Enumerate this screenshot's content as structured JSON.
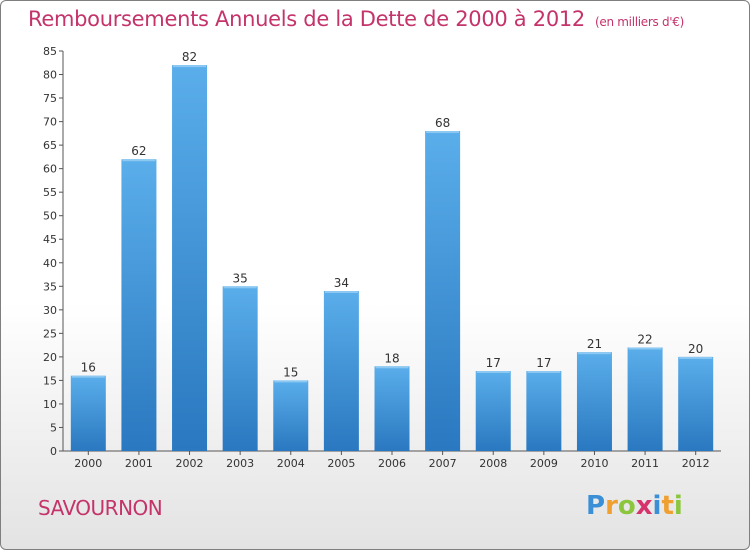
{
  "title": "Remboursements Annuels de la Dette de 2000 à 2012",
  "subtitle": "(en milliers d'€)",
  "commune": "SAVOURNON",
  "logo": {
    "text": "Proxiti",
    "letters": [
      {
        "ch": "P",
        "color": "#3a8fd6"
      },
      {
        "ch": "r",
        "color": "#f0a030"
      },
      {
        "ch": "o",
        "color": "#8cc63f"
      },
      {
        "ch": "x",
        "color": "#d6336c"
      },
      {
        "ch": "i",
        "color": "#3a8fd6"
      },
      {
        "ch": "t",
        "color": "#f0a030"
      },
      {
        "ch": "i",
        "color": "#8cc63f"
      }
    ]
  },
  "colors": {
    "title": "#c4336a",
    "bar_light": "#5aaeea",
    "bar_dark": "#2a78c0",
    "axis": "#555555"
  },
  "chart_data": {
    "type": "bar",
    "categories": [
      "2000",
      "2001",
      "2002",
      "2003",
      "2004",
      "2005",
      "2006",
      "2007",
      "2008",
      "2009",
      "2010",
      "2011",
      "2012"
    ],
    "values": [
      16,
      62,
      82,
      35,
      15,
      34,
      18,
      68,
      17,
      17,
      21,
      22,
      20
    ],
    "ylim": [
      0,
      85
    ],
    "yticks": [
      0,
      5,
      10,
      15,
      20,
      25,
      30,
      35,
      40,
      45,
      50,
      55,
      60,
      65,
      70,
      75,
      80,
      85
    ],
    "grid": false,
    "data_labels": true
  }
}
